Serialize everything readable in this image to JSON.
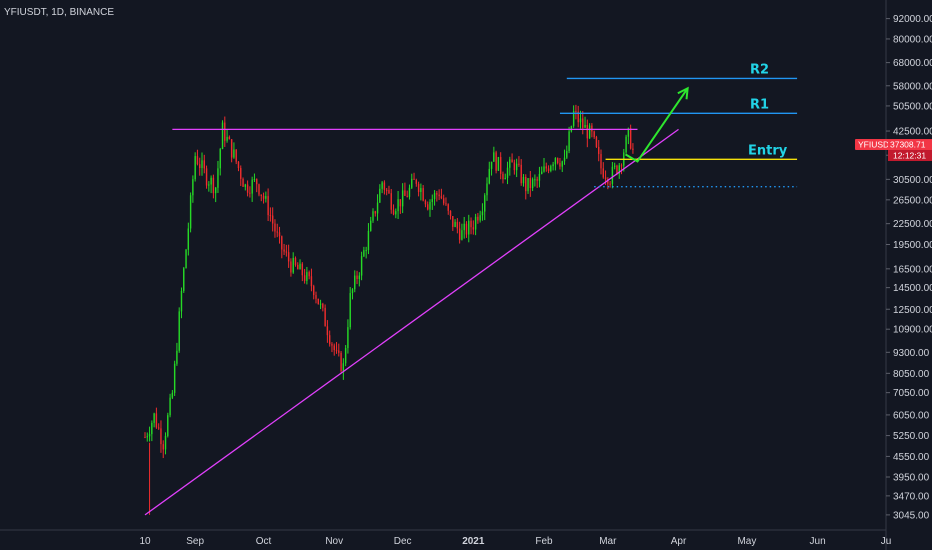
{
  "symbol_header": "YFIUSDT, 1D, BINANCE",
  "price_tag": {
    "ticker": "YFIUSDT",
    "price": "37308.71",
    "countdown": "12:12:31",
    "color": "#f23645"
  },
  "level_labels": {
    "r2": "R2",
    "r1": "R1",
    "entry": "Entry"
  },
  "colors": {
    "background": "#131722",
    "up_candle": "#26d926",
    "down_candle": "#ef2d2d",
    "trendline": "#e040fb",
    "resistance_line": "#2196f3",
    "entry_line": "#f5e10b",
    "label_cyan": "#22d3e6",
    "arrow": "#2ee62e"
  },
  "chart_data": {
    "type": "candlestick",
    "scale": "log",
    "y_ticks": [
      "92000.00",
      "80000.00",
      "68000.00",
      "58000.00",
      "50500.00",
      "42500.00",
      "36000.00",
      "30500.00",
      "26500.00",
      "22500.00",
      "19500.00",
      "16500.00",
      "14500.00",
      "12500.00",
      "10900.00",
      "9300.00",
      "8050.00",
      "7050.00",
      "6050.00",
      "5250.00",
      "4550.00",
      "3950.00",
      "3470.00",
      "3045.00"
    ],
    "x_ticks": [
      "10",
      "Sep",
      "Oct",
      "Nov",
      "Dec",
      "2021",
      "Feb",
      "Mar",
      "Apr",
      "May",
      "Jun",
      "Ju"
    ],
    "x_range": [
      "2020-08-10",
      "2021-07-01"
    ],
    "y_range": [
      2900,
      101000
    ],
    "last_price": 37308.71,
    "levels": {
      "horizontal_resistance": 43000,
      "r2": 61000,
      "r1": 48000,
      "entry": 35000,
      "support_dotted": 29000
    },
    "trendline": [
      [
        "2020-08-10",
        3045
      ],
      [
        "2021-04-01",
        43000
      ]
    ],
    "closes": [
      [
        "2020-08-10",
        5200
      ],
      [
        "2020-08-14",
        6000
      ],
      [
        "2020-08-18",
        5000
      ],
      [
        "2020-08-22",
        7000
      ],
      [
        "2020-08-26",
        14000
      ],
      [
        "2020-08-29",
        22000
      ],
      [
        "2020-09-01",
        36000
      ],
      [
        "2020-09-06",
        31000
      ],
      [
        "2020-09-10",
        29000
      ],
      [
        "2020-09-13",
        43000
      ],
      [
        "2020-09-18",
        36000
      ],
      [
        "2020-09-23",
        29000
      ],
      [
        "2020-09-28",
        30000
      ],
      [
        "2020-10-03",
        25000
      ],
      [
        "2020-10-08",
        19500
      ],
      [
        "2020-10-13",
        17000
      ],
      [
        "2020-10-18",
        16000
      ],
      [
        "2020-10-23",
        14500
      ],
      [
        "2020-10-28",
        11500
      ],
      [
        "2020-11-02",
        9000
      ],
      [
        "2020-11-05",
        8400
      ],
      [
        "2020-11-08",
        13500
      ],
      [
        "2020-11-12",
        16500
      ],
      [
        "2020-11-17",
        22000
      ],
      [
        "2020-11-22",
        30000
      ],
      [
        "2020-11-27",
        25500
      ],
      [
        "2020-12-02",
        27000
      ],
      [
        "2020-12-07",
        30500
      ],
      [
        "2020-12-12",
        26000
      ],
      [
        "2020-12-17",
        28000
      ],
      [
        "2020-12-22",
        23000
      ],
      [
        "2020-12-27",
        21000
      ],
      [
        "2021-01-01",
        22500
      ],
      [
        "2021-01-05",
        26000
      ],
      [
        "2021-01-09",
        36000
      ],
      [
        "2021-01-14",
        32000
      ],
      [
        "2021-01-19",
        34000
      ],
      [
        "2021-01-24",
        29000
      ],
      [
        "2021-01-29",
        30000
      ],
      [
        "2021-02-02",
        33000
      ],
      [
        "2021-02-06",
        36000
      ],
      [
        "2021-02-10",
        34000
      ],
      [
        "2021-02-14",
        48000
      ],
      [
        "2021-02-18",
        44000
      ],
      [
        "2021-02-22",
        41000
      ],
      [
        "2021-02-26",
        33000
      ],
      [
        "2021-03-02",
        31000
      ],
      [
        "2021-03-06",
        34000
      ],
      [
        "2021-03-10",
        41000
      ],
      [
        "2021-03-13",
        37308.71
      ]
    ],
    "projection_arrow": [
      [
        "2021-03-14",
        34500
      ],
      [
        "2021-04-05",
        57000
      ]
    ]
  }
}
